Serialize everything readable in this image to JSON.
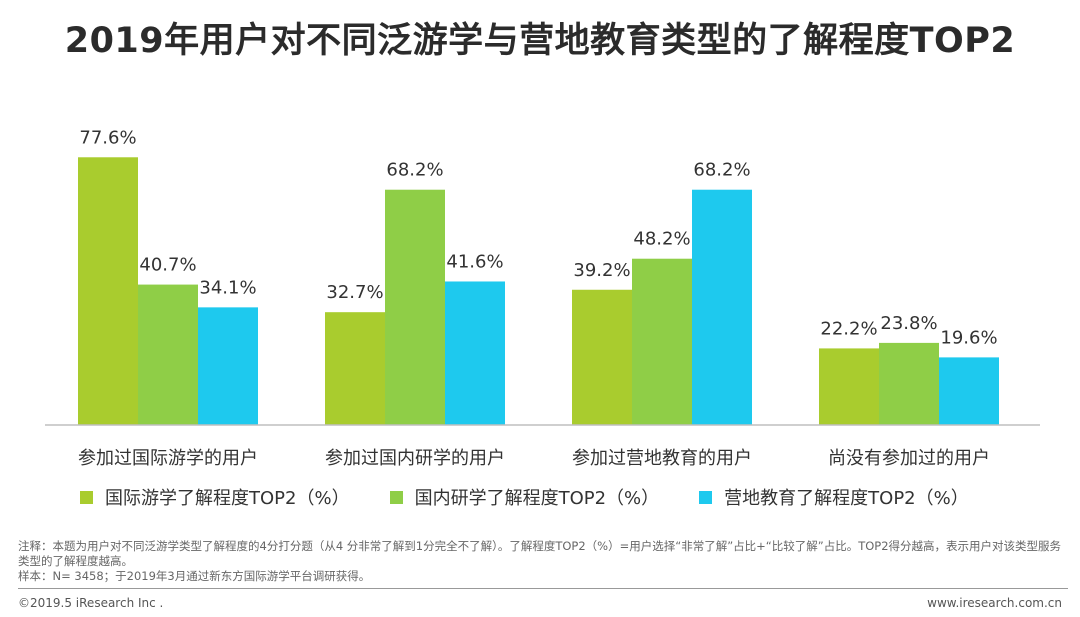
{
  "title": "2019年用户对不同泛游学与营地教育类型的了解程度TOP2",
  "chart_data": {
    "type": "bar",
    "categories": [
      "参加过国际游学的用户",
      "参加过国内研学的用户",
      "参加过营地教育的用户",
      "尚没有参加过的用户"
    ],
    "series": [
      {
        "name": "国际游学了解程度TOP2（%）",
        "color": "#a9cc2e",
        "values": [
          77.6,
          32.7,
          39.2,
          22.2
        ]
      },
      {
        "name": "国内研学了解程度TOP2（%）",
        "color": "#8fce47",
        "values": [
          40.7,
          68.2,
          48.2,
          23.8
        ]
      },
      {
        "name": "营地教育了解程度TOP2（%）",
        "color": "#1ec9ee",
        "values": [
          34.1,
          41.6,
          68.2,
          19.6
        ]
      }
    ],
    "value_suffix": "%",
    "ylim": [
      0,
      100
    ],
    "grid": false,
    "legend_position": "bottom"
  },
  "note": {
    "line1": "注释：本题为用户对不同泛游学类型了解程度的4分打分题（从4 分非常了解到1分完全不了解）。了解程度TOP2（%）=用户选择“非常了解”占比+“比较了解”占比。TOP2得分越高，表示用户对该类型服务类型的了解程度越高。",
    "line2": "样本：N= 3458；于2019年3月通过新东方国际游学平台调研获得。"
  },
  "footer": {
    "copyright": "©2019.5 iResearch Inc .",
    "website": "www.iresearch.com.cn"
  }
}
